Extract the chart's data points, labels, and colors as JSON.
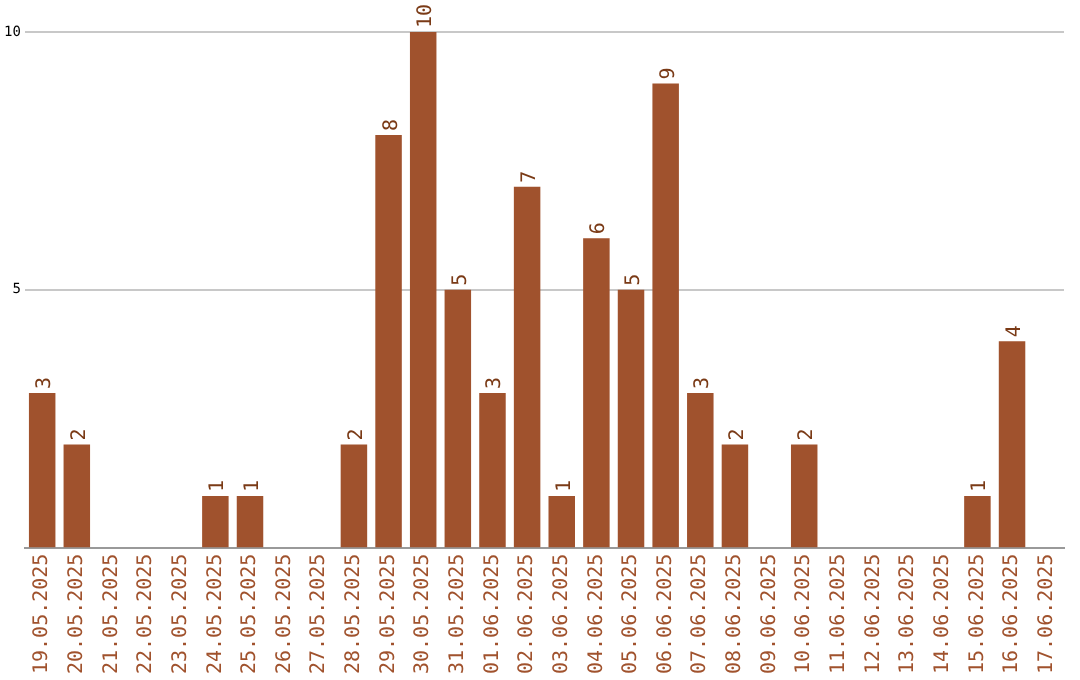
{
  "chart_data": {
    "type": "bar",
    "categories": [
      "19.05.2025",
      "20.05.2025",
      "21.05.2025",
      "22.05.2025",
      "23.05.2025",
      "24.05.2025",
      "25.05.2025",
      "26.05.2025",
      "27.05.2025",
      "28.05.2025",
      "29.05.2025",
      "30.05.2025",
      "31.05.2025",
      "01.06.2025",
      "02.06.2025",
      "03.06.2025",
      "04.06.2025",
      "05.06.2025",
      "06.06.2025",
      "07.06.2025",
      "08.06.2025",
      "09.06.2025",
      "10.06.2025",
      "11.06.2025",
      "12.06.2025",
      "13.06.2025",
      "14.06.2025",
      "15.06.2025",
      "16.06.2025",
      "17.06.2025"
    ],
    "values": [
      3,
      2,
      null,
      null,
      null,
      1,
      1,
      null,
      null,
      2,
      8,
      10,
      5,
      3,
      7,
      1,
      6,
      5,
      9,
      3,
      2,
      null,
      2,
      null,
      null,
      null,
      null,
      1,
      4,
      null
    ],
    "color": "#a0522d",
    "ylim": [
      0,
      10
    ],
    "yticks": [
      5,
      10
    ],
    "grid": "y",
    "data_labels": true,
    "legend": false
  }
}
